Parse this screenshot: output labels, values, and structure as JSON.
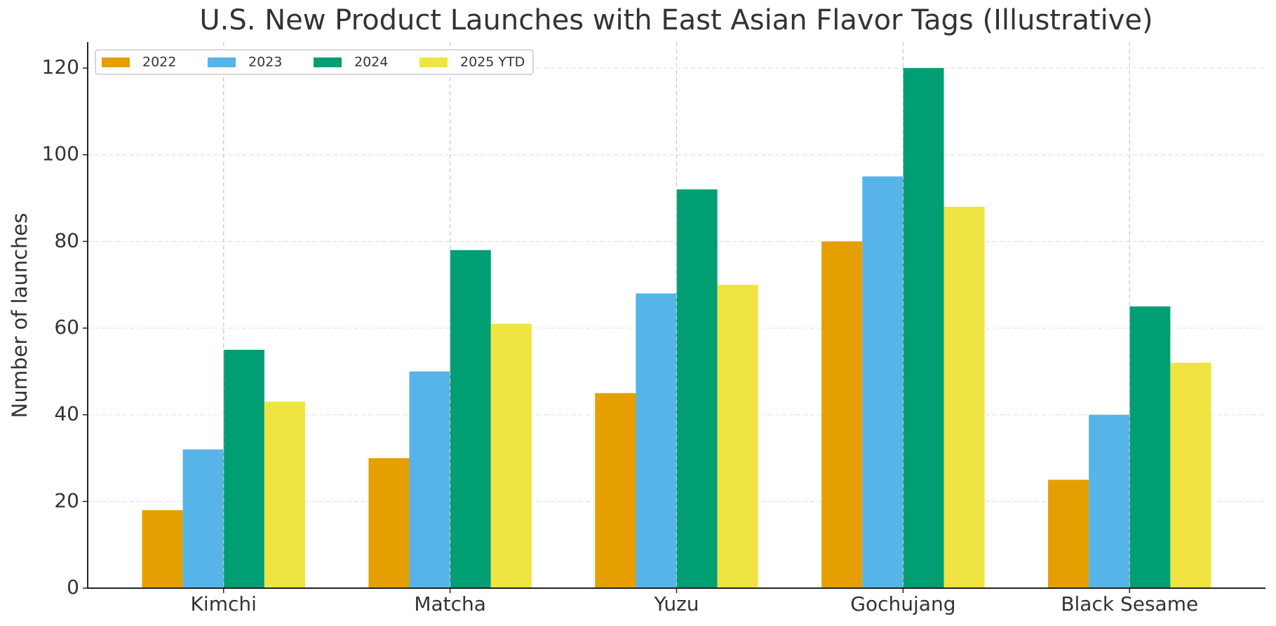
{
  "chart_data": {
    "type": "bar",
    "title": "U.S. New Product Launches with East Asian Flavor Tags (Illustrative)",
    "y_label": "Number of launches",
    "categories": [
      "Kimchi",
      "Matcha",
      "Yuzu",
      "Gochujang",
      "Black Sesame"
    ],
    "series": [
      {
        "name": "2022",
        "color": "#e69f00",
        "values": [
          18,
          30,
          45,
          80,
          25
        ]
      },
      {
        "name": "2023",
        "color": "#56b4e9",
        "values": [
          32,
          50,
          68,
          95,
          40
        ]
      },
      {
        "name": "2024",
        "color": "#009e73",
        "values": [
          55,
          78,
          92,
          120,
          65
        ]
      },
      {
        "name": "2025 YTD",
        "color": "#f0e442",
        "values": [
          43,
          61,
          70,
          88,
          52
        ]
      }
    ],
    "ylim": [
      0,
      126
    ],
    "yticks": [
      0,
      20,
      40,
      60,
      80,
      100,
      120
    ],
    "grid": true,
    "legend": "upper-left"
  }
}
